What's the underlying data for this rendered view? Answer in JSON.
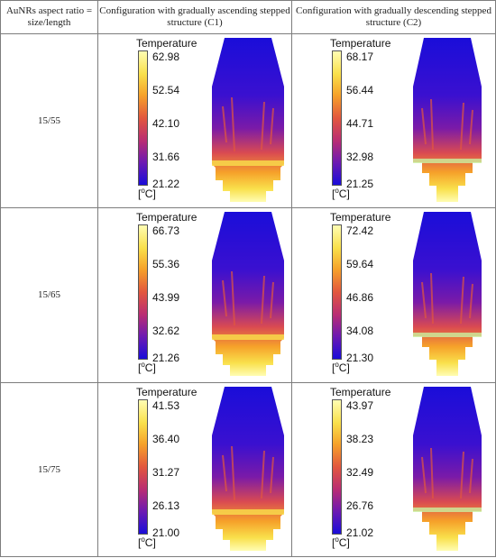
{
  "headers": {
    "col1": "AuNRs aspect ratio = size/length",
    "col2": "Configuration with gradually ascending stepped structure (C1)",
    "col3": "Configuration with gradually descending stepped structure (C2)"
  },
  "legend": {
    "title": "Temperature",
    "unit_prefix": "[",
    "unit_degree": "o",
    "unit_suffix": "C]"
  },
  "colormap": [
    "#fffdb3",
    "#f9e04b",
    "#f6a12a",
    "#e2573e",
    "#b92d74",
    "#6e1ab1",
    "#1a0dd9"
  ],
  "rows": [
    {
      "label": "15/55",
      "c1": {
        "ticks": [
          "62.98",
          "52.54",
          "42.10",
          "31.66",
          "21.22"
        ]
      },
      "c2": {
        "ticks": [
          "68.17",
          "56.44",
          "44.71",
          "32.98",
          "21.25"
        ]
      }
    },
    {
      "label": "15/65",
      "c1": {
        "ticks": [
          "66.73",
          "55.36",
          "43.99",
          "32.62",
          "21.26"
        ]
      },
      "c2": {
        "ticks": [
          "72.42",
          "59.64",
          "46.86",
          "34.08",
          "21.30"
        ]
      }
    },
    {
      "label": "15/75",
      "c1": {
        "ticks": [
          "41.53",
          "36.40",
          "31.27",
          "26.13",
          "21.00"
        ]
      },
      "c2": {
        "ticks": [
          "43.97",
          "38.23",
          "32.49",
          "26.76",
          "21.02"
        ]
      }
    }
  ]
}
